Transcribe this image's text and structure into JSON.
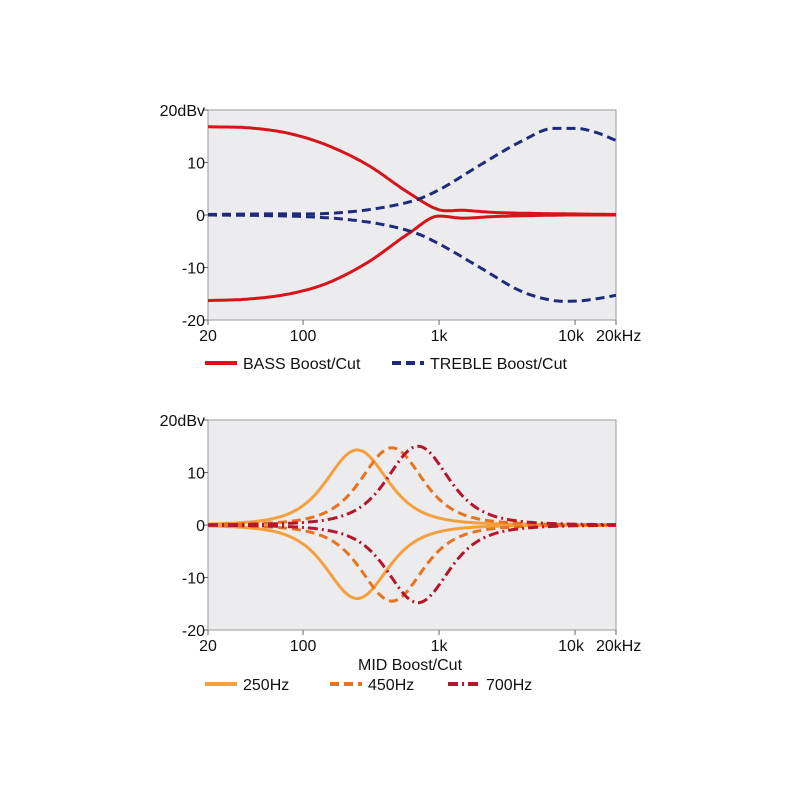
{
  "chart_data": [
    {
      "type": "line",
      "title": "",
      "xlabel": "",
      "ylabel": "",
      "x_scale": "log",
      "xlim": [
        20,
        20000
      ],
      "ylim": [
        -20,
        20
      ],
      "grid": false,
      "legend_position": "bottom",
      "x_ticks": [
        {
          "value": 20,
          "label": "20"
        },
        {
          "value": 100,
          "label": "100"
        },
        {
          "value": 1000,
          "label": "1k"
        },
        {
          "value": 10000,
          "label": "10k"
        },
        {
          "value": 20000,
          "label": "20kHz"
        }
      ],
      "y_ticks": [
        {
          "value": 20,
          "label": "20dBv"
        },
        {
          "value": 10,
          "label": "10"
        },
        {
          "value": 0,
          "label": "0"
        },
        {
          "value": -10,
          "label": "-10"
        },
        {
          "value": -20,
          "label": "-20"
        }
      ],
      "series": [
        {
          "name": "BASS Boost/Cut",
          "color": "#d7141a",
          "dash": "solid",
          "x": [
            20,
            40,
            80,
            150,
            300,
            600,
            1000,
            1500,
            2500,
            5000,
            10000,
            20000
          ],
          "y": [
            16.8,
            16.6,
            15.5,
            13.3,
            9.5,
            4.2,
            1.0,
            0.9,
            0.5,
            0.3,
            0.2,
            0.1
          ]
        },
        {
          "name": "BASS Boost/Cut",
          "color": "#d7141a",
          "dash": "solid",
          "x": [
            20,
            40,
            80,
            150,
            300,
            600,
            1000,
            1500,
            2500,
            5000,
            10000,
            20000
          ],
          "y": [
            -16.3,
            -16.0,
            -15.0,
            -13.0,
            -9.0,
            -3.5,
            -0.2,
            -0.6,
            -0.3,
            -0.1,
            0,
            0
          ]
        },
        {
          "name": "TREBLE Boost/Cut",
          "color": "#1f2a7a",
          "dash": "dashed",
          "x": [
            20,
            50,
            100,
            200,
            400,
            700,
            1000,
            2000,
            4000,
            7000,
            10000,
            14000,
            20000
          ],
          "y": [
            0.1,
            0.2,
            0.2,
            0.5,
            1.5,
            3.0,
            4.8,
            9.5,
            14.0,
            16.5,
            16.5,
            15.8,
            14.2
          ]
        },
        {
          "name": "TREBLE Boost/Cut",
          "color": "#1f2a7a",
          "dash": "dashed",
          "x": [
            20,
            50,
            100,
            200,
            400,
            700,
            1000,
            2000,
            4000,
            7000,
            10000,
            14000,
            20000
          ],
          "y": [
            0,
            -0.1,
            -0.3,
            -0.8,
            -1.9,
            -3.6,
            -5.5,
            -10.0,
            -14.5,
            -16.3,
            -16.4,
            -16.0,
            -15.3
          ]
        }
      ],
      "legend": [
        {
          "label": "BASS Boost/Cut",
          "color": "#d7141a",
          "dash": "solid"
        },
        {
          "label": "TREBLE Boost/Cut",
          "color": "#1f2a7a",
          "dash": "dashed"
        }
      ]
    },
    {
      "type": "line",
      "title": "",
      "xlabel": "MID Boost/Cut",
      "ylabel": "",
      "x_scale": "log",
      "xlim": [
        20,
        20000
      ],
      "ylim": [
        -20,
        20
      ],
      "grid": false,
      "legend_position": "bottom",
      "x_ticks": [
        {
          "value": 20,
          "label": "20"
        },
        {
          "value": 100,
          "label": "100"
        },
        {
          "value": 1000,
          "label": "1k"
        },
        {
          "value": 10000,
          "label": "10k"
        },
        {
          "value": 20000,
          "label": "20kHz"
        }
      ],
      "y_ticks": [
        {
          "value": 20,
          "label": "20dBv"
        },
        {
          "value": 10,
          "label": "10"
        },
        {
          "value": 0,
          "label": "0"
        },
        {
          "value": -10,
          "label": "-10"
        },
        {
          "value": -20,
          "label": "-20"
        }
      ],
      "series": [
        {
          "name": "250Hz",
          "color": "#f5a03c",
          "dash": "solid",
          "peak_hz": 250,
          "gain_db": 14.3,
          "q": 0.9
        },
        {
          "name": "250Hz",
          "color": "#f5a03c",
          "dash": "solid",
          "peak_hz": 250,
          "gain_db": -14.0,
          "q": 0.9
        },
        {
          "name": "450Hz",
          "color": "#e8731e",
          "dash": "dashed",
          "peak_hz": 450,
          "gain_db": 14.7,
          "q": 0.9
        },
        {
          "name": "450Hz",
          "color": "#e8731e",
          "dash": "dashed",
          "peak_hz": 450,
          "gain_db": -14.5,
          "q": 0.9
        },
        {
          "name": "700Hz",
          "color": "#b5162b",
          "dash": "dashdot",
          "peak_hz": 700,
          "gain_db": 15.0,
          "q": 0.9
        },
        {
          "name": "700Hz",
          "color": "#b5162b",
          "dash": "dashdot",
          "peak_hz": 700,
          "gain_db": -14.8,
          "q": 0.9
        }
      ],
      "legend": [
        {
          "label": "250Hz",
          "color": "#f5a03c",
          "dash": "solid"
        },
        {
          "label": "450Hz",
          "color": "#e8731e",
          "dash": "dashed"
        },
        {
          "label": "700Hz",
          "color": "#b5162b",
          "dash": "dashdot"
        }
      ]
    }
  ]
}
